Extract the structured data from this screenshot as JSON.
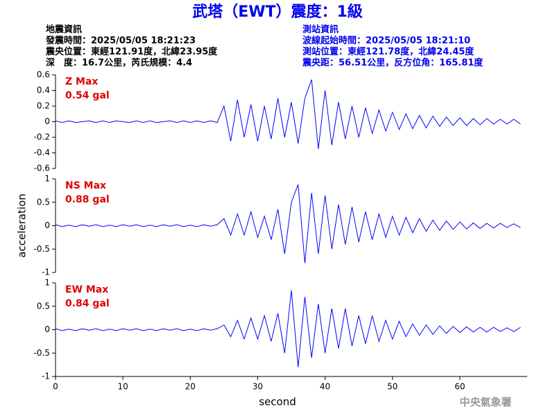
{
  "header": {
    "title": "武塔（EWT）震度：1級",
    "event_info": [
      "地震資訊",
      "發震時間：2025/05/05 18:21:23",
      "震央位置：東經121.91度，北緯23.95度",
      "深　度：16.7公里，芮氏規模：4.4"
    ],
    "station_info": [
      "測站資訊",
      "波線起始時間：2025/05/05 18:21:10",
      "測站位置：東經121.78度，北緯24.45度",
      "震央距：56.51公里，反方位角：165.81度"
    ],
    "agency": "中央氣象署"
  },
  "chart_data": [
    {
      "type": "line",
      "label": "Z Max",
      "max_label": "0.54 gal",
      "x": [
        0,
        1,
        2,
        3,
        4,
        5,
        6,
        7,
        8,
        9,
        10,
        11,
        12,
        13,
        14,
        15,
        16,
        17,
        18,
        19,
        20,
        21,
        22,
        23,
        24,
        25,
        26,
        27,
        28,
        29,
        30,
        31,
        32,
        33,
        34,
        35,
        36,
        37,
        38,
        39,
        40,
        41,
        42,
        43,
        44,
        45,
        46,
        47,
        48,
        49,
        50,
        51,
        52,
        53,
        54,
        55,
        56,
        57,
        58,
        59,
        60,
        61,
        62,
        63,
        64,
        65,
        66,
        67,
        68,
        69
      ],
      "series": [
        {
          "color": "#0000ff",
          "values": [
            0.01,
            -0.01,
            0.01,
            -0.01,
            0,
            0.01,
            -0.01,
            0.01,
            -0.01,
            0.01,
            0,
            -0.01,
            0.01,
            -0.01,
            0.01,
            -0.01,
            0,
            0.01,
            -0.01,
            0.01,
            -0.01,
            0.01,
            -0.01,
            0.01,
            -0.01,
            0.2,
            -0.25,
            0.28,
            -0.2,
            0.22,
            -0.25,
            0.2,
            -0.22,
            0.3,
            -0.2,
            0.25,
            -0.28,
            0.3,
            0.54,
            -0.35,
            0.4,
            -0.3,
            0.25,
            -0.22,
            0.2,
            -0.2,
            0.18,
            -0.15,
            0.15,
            -0.12,
            0.12,
            -0.1,
            0.1,
            -0.09,
            0.08,
            -0.08,
            0.07,
            -0.06,
            0.06,
            -0.05,
            0.05,
            -0.05,
            0.04,
            -0.04,
            0.04,
            -0.03,
            0.03,
            -0.03,
            0.03,
            -0.03
          ]
        }
      ],
      "xlim": [
        0,
        70
      ],
      "ylim": [
        -0.6,
        0.6
      ],
      "yticks": [
        -0.6,
        -0.4,
        -0.2,
        0,
        0.2,
        0.4,
        0.6
      ]
    },
    {
      "type": "line",
      "label": "NS Max",
      "max_label": "0.88 gal",
      "ylabel": "acceleration",
      "x": [
        0,
        1,
        2,
        3,
        4,
        5,
        6,
        7,
        8,
        9,
        10,
        11,
        12,
        13,
        14,
        15,
        16,
        17,
        18,
        19,
        20,
        21,
        22,
        23,
        24,
        25,
        26,
        27,
        28,
        29,
        30,
        31,
        32,
        33,
        34,
        35,
        36,
        37,
        38,
        39,
        40,
        41,
        42,
        43,
        44,
        45,
        46,
        47,
        48,
        49,
        50,
        51,
        52,
        53,
        54,
        55,
        56,
        57,
        58,
        59,
        60,
        61,
        62,
        63,
        64,
        65,
        66,
        67,
        68,
        69
      ],
      "series": [
        {
          "color": "#0000ff",
          "values": [
            0.02,
            -0.02,
            0.01,
            -0.02,
            0.02,
            -0.01,
            0.02,
            -0.02,
            0.01,
            -0.02,
            0.02,
            -0.01,
            0.02,
            -0.02,
            0.01,
            -0.02,
            0.02,
            -0.01,
            0.02,
            -0.02,
            0.01,
            -0.02,
            0.02,
            -0.01,
            0.02,
            0.15,
            -0.2,
            0.25,
            -0.2,
            0.3,
            -0.25,
            0.2,
            -0.3,
            0.35,
            -0.6,
            0.5,
            0.88,
            -0.8,
            0.7,
            -0.6,
            0.65,
            -0.5,
            0.45,
            -0.4,
            0.4,
            -0.35,
            0.3,
            -0.3,
            0.25,
            -0.25,
            0.2,
            -0.2,
            0.18,
            -0.15,
            0.15,
            -0.12,
            0.12,
            -0.1,
            0.1,
            -0.08,
            0.08,
            -0.07,
            0.06,
            -0.06,
            0.05,
            -0.05,
            0.05,
            -0.04,
            0.04,
            -0.04
          ]
        }
      ],
      "xlim": [
        0,
        70
      ],
      "ylim": [
        -1,
        1
      ],
      "yticks": [
        -1,
        -0.5,
        0,
        0.5,
        1
      ]
    },
    {
      "type": "line",
      "label": "EW Max",
      "max_label": "0.84 gal",
      "xlabel": "second",
      "x": [
        0,
        1,
        2,
        3,
        4,
        5,
        6,
        7,
        8,
        9,
        10,
        11,
        12,
        13,
        14,
        15,
        16,
        17,
        18,
        19,
        20,
        21,
        22,
        23,
        24,
        25,
        26,
        27,
        28,
        29,
        30,
        31,
        32,
        33,
        34,
        35,
        36,
        37,
        38,
        39,
        40,
        41,
        42,
        43,
        44,
        45,
        46,
        47,
        48,
        49,
        50,
        51,
        52,
        53,
        54,
        55,
        56,
        57,
        58,
        59,
        60,
        61,
        62,
        63,
        64,
        65,
        66,
        67,
        68,
        69
      ],
      "series": [
        {
          "color": "#0000ff",
          "values": [
            0.02,
            -0.02,
            0.01,
            -0.02,
            0.02,
            -0.01,
            0.02,
            -0.02,
            0.01,
            -0.02,
            0.02,
            -0.01,
            0.02,
            -0.02,
            0.01,
            -0.02,
            0.02,
            -0.01,
            0.02,
            -0.02,
            0.01,
            -0.02,
            0.02,
            -0.01,
            0.02,
            0.1,
            -0.15,
            0.2,
            -0.2,
            0.25,
            -0.2,
            0.3,
            -0.25,
            0.35,
            -0.5,
            0.84,
            -0.8,
            0.7,
            -0.6,
            0.55,
            -0.5,
            0.45,
            -0.4,
            0.45,
            -0.35,
            0.3,
            -0.3,
            0.3,
            -0.25,
            0.2,
            -0.2,
            0.18,
            -0.15,
            0.12,
            -0.12,
            0.1,
            -0.1,
            0.08,
            -0.08,
            0.07,
            -0.06,
            0.06,
            -0.05,
            0.05,
            -0.05,
            0.05,
            -0.04,
            0.04,
            -0.04,
            0.05
          ]
        }
      ],
      "xlim": [
        0,
        70
      ],
      "xticks": [
        0,
        10,
        20,
        30,
        40,
        50,
        60
      ],
      "ylim": [
        -1,
        1
      ],
      "yticks": [
        -1,
        -0.5,
        0,
        0.5,
        1
      ]
    }
  ]
}
